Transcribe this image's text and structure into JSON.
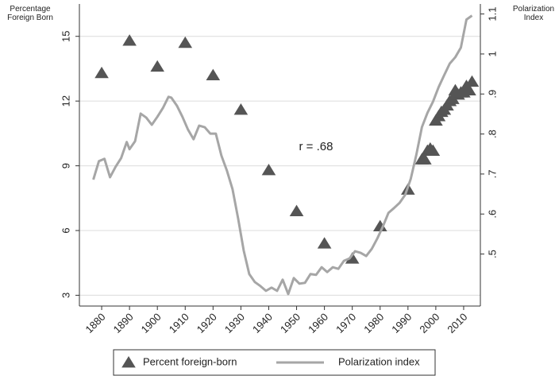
{
  "chart_data": {
    "type": "combo",
    "annotation": "r = .68",
    "y_label": "Percentage Foreign Born",
    "y2_label": "Polarization Index",
    "xlim": [
      1872,
      2016
    ],
    "xticks": [
      1880,
      1890,
      1900,
      1910,
      1920,
      1930,
      1940,
      1950,
      1960,
      1970,
      1980,
      1990,
      2000,
      2010
    ],
    "ylim": [
      2.5,
      16.5
    ],
    "yticks": [
      3,
      6,
      9,
      12,
      15
    ],
    "y2lim": [
      0.37,
      1.125
    ],
    "y2ticks": [
      {
        "value": 0.5,
        "label": ".5"
      },
      {
        "value": 0.6,
        "label": ".6"
      },
      {
        "value": 0.7,
        "label": ".7"
      },
      {
        "value": 0.8,
        "label": ".8"
      },
      {
        "value": 0.9,
        "label": ".9"
      },
      1,
      1.1
    ],
    "grid": true,
    "legend": "bottom",
    "series": [
      {
        "name": "Percent foreign-born",
        "type": "scatter",
        "color": "#555555",
        "x": [
          1880,
          1890,
          1900,
          1910,
          1920,
          1930,
          1940,
          1950,
          1960,
          1970,
          1980,
          1990,
          1995,
          1996,
          1997,
          1998,
          1999,
          2000,
          2001,
          2002,
          2003,
          2004,
          2005,
          2006,
          2007,
          2008,
          2009,
          2010,
          2011,
          2012,
          2013
        ],
        "values": [
          13.3,
          14.8,
          13.6,
          14.7,
          13.2,
          11.6,
          8.8,
          6.9,
          5.4,
          4.7,
          6.2,
          7.9,
          9.3,
          9.3,
          9.7,
          9.8,
          9.7,
          11.1,
          11.3,
          11.5,
          11.6,
          11.8,
          12.0,
          12.1,
          12.5,
          12.3,
          12.4,
          12.4,
          12.7,
          12.5,
          12.9
        ]
      },
      {
        "name": "Polarization index",
        "type": "line",
        "color": "#a6a6a6",
        "axis": "y2",
        "x": [
          1877,
          1879,
          1881,
          1883,
          1885,
          1887,
          1889,
          1890,
          1892,
          1894,
          1896,
          1898,
          1900,
          1902,
          1904,
          1905,
          1907,
          1909,
          1911,
          1913,
          1915,
          1917,
          1919,
          1921,
          1923,
          1925,
          1927,
          1929,
          1931,
          1933,
          1935,
          1937,
          1939,
          1941,
          1943,
          1945,
          1947,
          1949,
          1951,
          1953,
          1955,
          1957,
          1959,
          1961,
          1963,
          1965,
          1967,
          1969,
          1971,
          1973,
          1975,
          1977,
          1979,
          1981,
          1983,
          1985,
          1987,
          1989,
          1991,
          1993,
          1995,
          1997,
          1999,
          2001,
          2003,
          2005,
          2007,
          2009,
          2011,
          2013
        ],
        "values": [
          0.686,
          0.732,
          0.738,
          0.692,
          0.718,
          0.74,
          0.78,
          0.762,
          0.782,
          0.851,
          0.841,
          0.823,
          0.843,
          0.865,
          0.893,
          0.891,
          0.871,
          0.843,
          0.811,
          0.787,
          0.821,
          0.817,
          0.801,
          0.801,
          0.746,
          0.708,
          0.662,
          0.589,
          0.509,
          0.45,
          0.43,
          0.42,
          0.408,
          0.416,
          0.408,
          0.436,
          0.4,
          0.44,
          0.426,
          0.428,
          0.45,
          0.448,
          0.467,
          0.455,
          0.467,
          0.463,
          0.483,
          0.489,
          0.507,
          0.503,
          0.495,
          0.513,
          0.539,
          0.569,
          0.603,
          0.615,
          0.628,
          0.648,
          0.688,
          0.748,
          0.817,
          0.853,
          0.881,
          0.917,
          0.947,
          0.976,
          0.992,
          1.016,
          1.086,
          1.096
        ]
      }
    ]
  }
}
